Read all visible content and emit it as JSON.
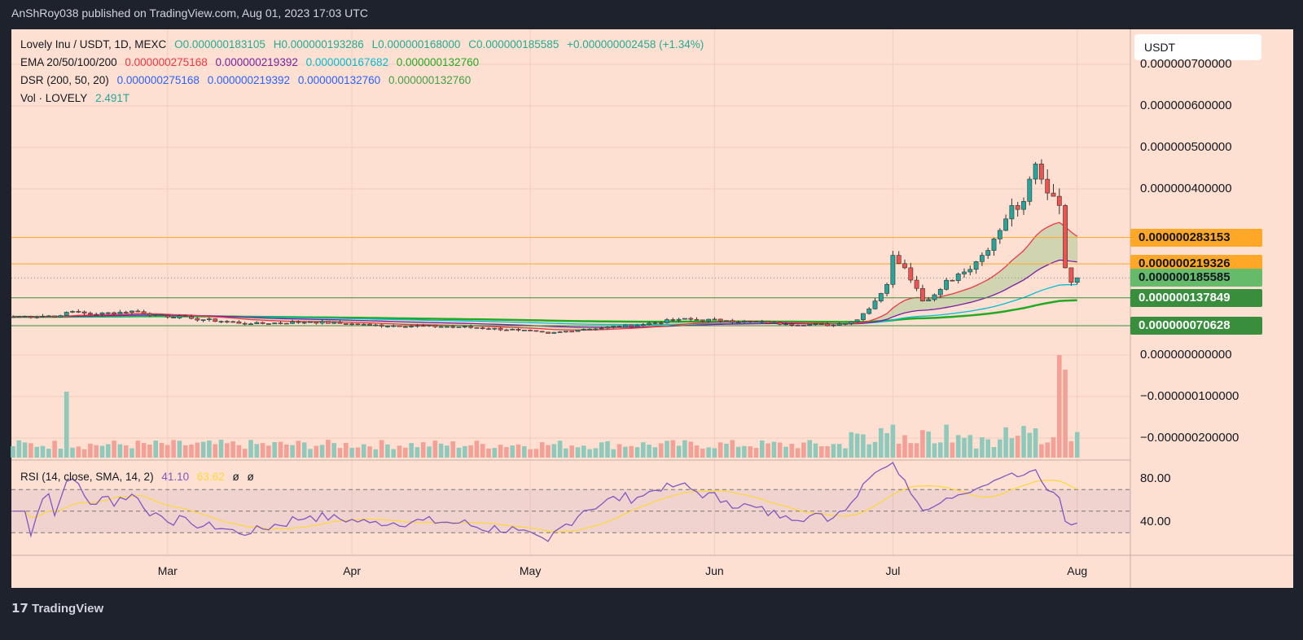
{
  "header": {
    "publisher": "AnShRoy038 published on TradingView.com, Aug 01, 2023 17:03 UTC"
  },
  "legend": {
    "symbol": "Lovely Inu / USDT, 1D, MEXC",
    "open": "O0.000000183105",
    "high": "H0.000000193286",
    "low": "L0.000000168000",
    "close": "C0.000000185585",
    "change": "+0.000000002458 (+1.34%)",
    "ema_label": "EMA 20/50/100/200",
    "ema_values": [
      "0.000000275168",
      "0.000000219392",
      "0.000000167682",
      "0.000000132760"
    ],
    "dsr_label": "DSR (200, 50, 20)",
    "dsr_values": [
      "0.000000275168",
      "0.000000219392",
      "0.000000132760",
      "0.000000132760"
    ],
    "vol_label": "Vol · LOVELY",
    "vol_value": "2.491T",
    "rsi_label": "RSI (14, close, SMA, 14, 2)",
    "rsi_value": "41.10",
    "rsi_sma": "63.62",
    "rsi_extra": [
      "ø",
      "ø"
    ]
  },
  "currency_button": "USDT",
  "price_axis": {
    "labels": [
      "0.000000700000",
      "0.000000600000",
      "0.000000500000",
      "0.000000400000",
      "0.000000000000",
      "−0.000000100000",
      "−0.000000200000"
    ],
    "values": [
      7e-07,
      6e-07,
      5e-07,
      4e-07,
      0,
      -1e-07,
      -2e-07
    ]
  },
  "price_tags": [
    {
      "text": "0.000000283153",
      "value": 2.83153e-07,
      "bg": "#ffa726",
      "fg": "#131722"
    },
    {
      "text": "0.000000219326",
      "value": 2.19326e-07,
      "bg": "#ffa726",
      "fg": "#131722"
    },
    {
      "text": "0.000000185585",
      "value": 1.85585e-07,
      "bg": "#66bb6a",
      "fg": "#131722"
    },
    {
      "text": "0.000000137849",
      "value": 1.37849e-07,
      "bg": "#388e3c",
      "fg": "#ffffff"
    },
    {
      "text": "0.000000070628",
      "value": 7.0628e-08,
      "bg": "#388e3c",
      "fg": "#ffffff"
    }
  ],
  "rsi_axis": {
    "labels": [
      "80.00",
      "40.00"
    ],
    "values": [
      80,
      40
    ]
  },
  "time_axis": {
    "labels": [
      "Mar",
      "Apr",
      "May",
      "Jun",
      "Jul",
      "Aug"
    ],
    "days": [
      26,
      57,
      87,
      118,
      148,
      179
    ]
  },
  "colors": {
    "up": "#26a69a",
    "down": "#ef5350",
    "ema20": "#f23645",
    "ema50": "#7b1fa2",
    "ema100": "#00bcd4",
    "ema200": "#22ab22",
    "rsi": "#7e57c2",
    "rsi_sma": "#fdd835",
    "orange_level": "#ffa726",
    "green_level": "#388e3c"
  },
  "chart_data": {
    "type": "candlestick",
    "start_date": "Feb 03",
    "close_keypoints": [
      [
        0,
        9.2e-08
      ],
      [
        8,
        9.5e-08
      ],
      [
        10,
        1.05e-07
      ],
      [
        14,
        9.8e-08
      ],
      [
        20,
        1.06e-07
      ],
      [
        22,
        1e-07
      ],
      [
        30,
        8.8e-08
      ],
      [
        40,
        7.5e-08
      ],
      [
        50,
        8e-08
      ],
      [
        60,
        7.2e-08
      ],
      [
        75,
        6.8e-08
      ],
      [
        85,
        6e-08
      ],
      [
        90,
        5.2e-08
      ],
      [
        96,
        6.2e-08
      ],
      [
        105,
        7.2e-08
      ],
      [
        112,
        8.6e-08
      ],
      [
        120,
        8.3e-08
      ],
      [
        130,
        7.5e-08
      ],
      [
        138,
        7.2e-08
      ],
      [
        142,
        8.5e-08
      ],
      [
        145,
        1.3e-07
      ],
      [
        147,
        1.7e-07
      ],
      [
        148,
        2.4e-07
      ],
      [
        150,
        2.1e-07
      ],
      [
        153,
        1.3e-07
      ],
      [
        155,
        1.45e-07
      ],
      [
        157,
        1.8e-07
      ],
      [
        160,
        2e-07
      ],
      [
        163,
        2.4e-07
      ],
      [
        166,
        3e-07
      ],
      [
        168,
        3.6e-07
      ],
      [
        170,
        3.7e-07
      ],
      [
        172,
        4.6e-07
      ],
      [
        174,
        3.9e-07
      ],
      [
        176,
        3.6e-07
      ],
      [
        177,
        2.1e-07
      ],
      [
        178,
        1.75e-07
      ],
      [
        179,
        1.86e-07
      ]
    ],
    "volume_spikes": [
      [
        9,
        0.9
      ],
      [
        148,
        0.45
      ],
      [
        157,
        0.45
      ],
      [
        172,
        0.4
      ],
      [
        176,
        1.4
      ],
      [
        177,
        1.2
      ],
      [
        179,
        0.35
      ]
    ],
    "rsi_bands": [
      70,
      50,
      30
    ]
  }
}
